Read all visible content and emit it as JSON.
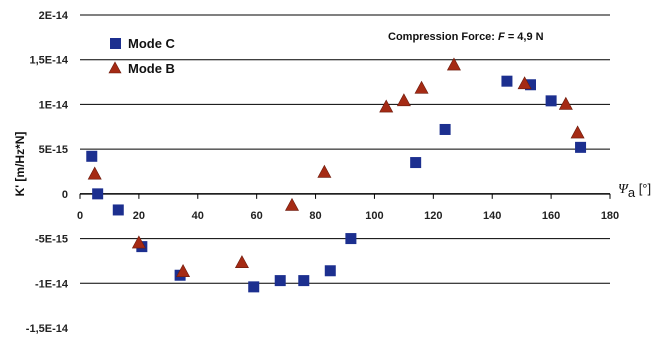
{
  "chart_data": {
    "type": "scatter",
    "title": "",
    "annotation": {
      "prefix": "Compression Force: ",
      "var": "F",
      "suffix": " = 4,9 N"
    },
    "xlabel": {
      "symbol": "Ψ",
      "sub": "a",
      "unit": " [°]"
    },
    "ylabel": "K' [m/Hz*N]",
    "xlim": [
      0,
      180
    ],
    "ylim": [
      -1.5e-14,
      2e-14
    ],
    "x_ticks": [
      "0",
      "20",
      "40",
      "60",
      "80",
      "100",
      "120",
      "140",
      "160",
      "180"
    ],
    "y_ticks": [
      {
        "value": 2e-14,
        "label": "2E-14"
      },
      {
        "value": 1.5e-14,
        "label": "1,5E-14"
      },
      {
        "value": 1e-14,
        "label": "1E-14"
      },
      {
        "value": 5e-15,
        "label": "5E-15"
      },
      {
        "value": 0,
        "label": "0"
      },
      {
        "value": -5e-15,
        "label": "-5E-15"
      },
      {
        "value": -1e-14,
        "label": "-1E-14"
      },
      {
        "value": -1.5e-14,
        "label": "-1,5E-14"
      }
    ],
    "grid": "horizontal",
    "legend_position": "top-left",
    "series": [
      {
        "name": "Mode C",
        "marker": "square",
        "color": "#1c2f8f",
        "points": [
          [
            4,
            4.2e-15
          ],
          [
            6,
            0
          ],
          [
            13,
            -1.8e-15
          ],
          [
            21,
            -5.9e-15
          ],
          [
            34,
            -9.1e-15
          ],
          [
            59,
            -1.04e-14
          ],
          [
            68,
            -9.7e-15
          ],
          [
            76,
            -9.7e-15
          ],
          [
            85,
            -8.6e-15
          ],
          [
            92,
            -5e-15
          ],
          [
            114,
            3.5e-15
          ],
          [
            124,
            7.2e-15
          ],
          [
            145,
            1.26e-14
          ],
          [
            153,
            1.22e-14
          ],
          [
            160,
            1.04e-14
          ],
          [
            170,
            5.2e-15
          ]
        ]
      },
      {
        "name": "Mode B",
        "marker": "triangle",
        "color": "#a52a14",
        "points": [
          [
            5,
            2.2e-15
          ],
          [
            20,
            -5.5e-15
          ],
          [
            35,
            -8.7e-15
          ],
          [
            55,
            -7.7e-15
          ],
          [
            72,
            -1.3e-15
          ],
          [
            83,
            2.4e-15
          ],
          [
            104,
            9.7e-15
          ],
          [
            110,
            1.04e-14
          ],
          [
            116,
            1.18e-14
          ],
          [
            127,
            1.44e-14
          ],
          [
            151,
            1.23e-14
          ],
          [
            165,
            1e-14
          ],
          [
            169,
            6.8e-15
          ]
        ]
      }
    ]
  }
}
